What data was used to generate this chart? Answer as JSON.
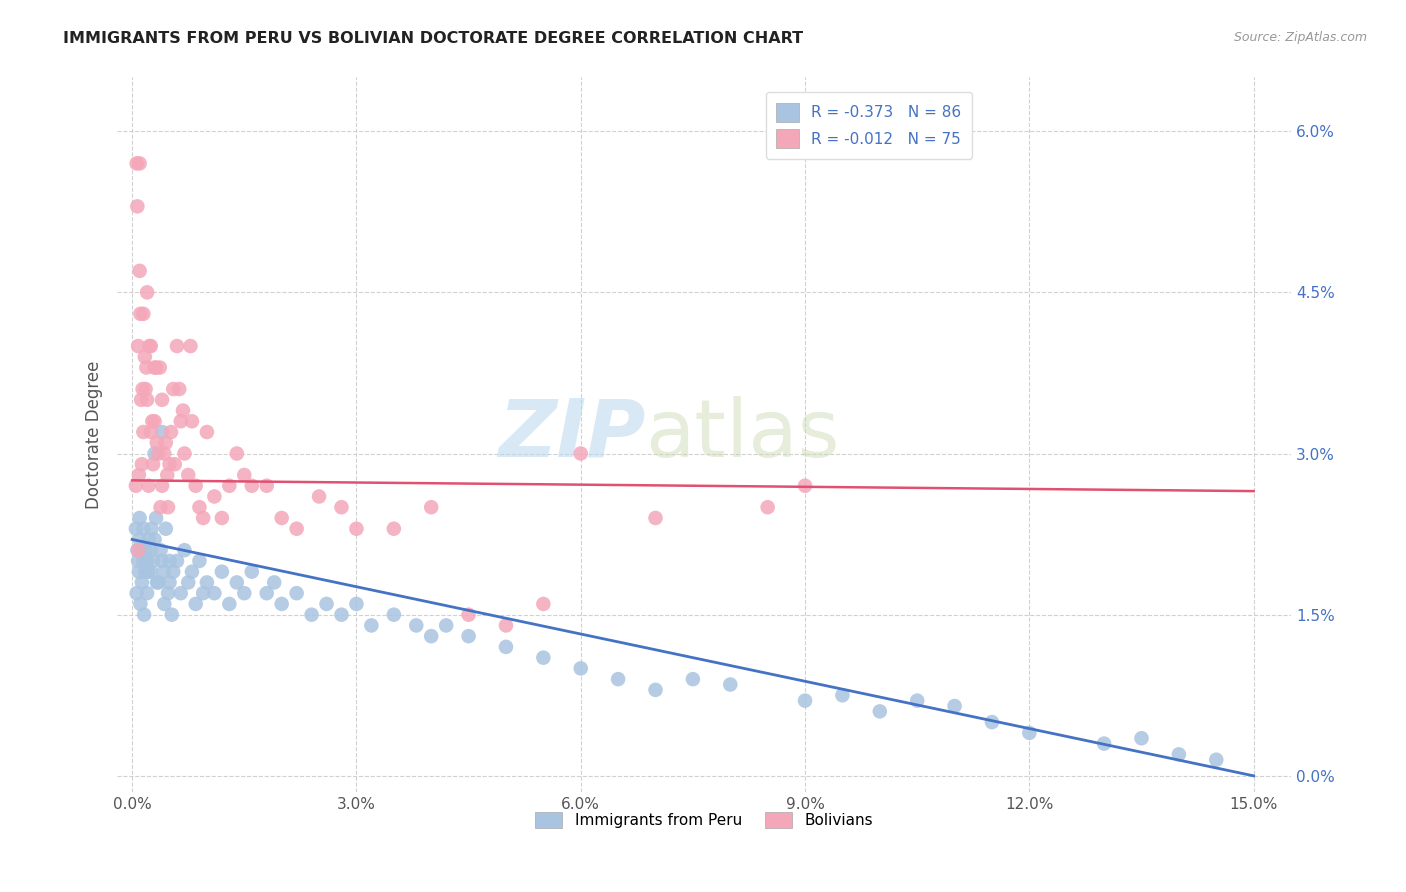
{
  "title": "IMMIGRANTS FROM PERU VS BOLIVIAN DOCTORATE DEGREE CORRELATION CHART",
  "source": "Source: ZipAtlas.com",
  "xlabel_ticks": [
    "0.0%",
    "3.0%",
    "6.0%",
    "9.0%",
    "12.0%",
    "15.0%"
  ],
  "xlabel_values": [
    0.0,
    3.0,
    6.0,
    9.0,
    12.0,
    15.0
  ],
  "ylabel_ticks": [
    "0.0%",
    "1.5%",
    "3.0%",
    "4.5%",
    "6.0%"
  ],
  "ylabel_values": [
    0.0,
    1.5,
    3.0,
    4.5,
    6.0
  ],
  "xlim": [
    -0.2,
    15.5
  ],
  "ylim": [
    -0.15,
    6.5
  ],
  "blue_R": -0.373,
  "blue_N": 86,
  "pink_R": -0.012,
  "pink_N": 75,
  "blue_color": "#a8c4e0",
  "pink_color": "#f4a7b9",
  "blue_line_color": "#4472c4",
  "pink_line_color": "#e05070",
  "legend_label_blue": "Immigrants from Peru",
  "legend_label_pink": "Bolivians",
  "ylabel": "Doctorate Degree",
  "watermark_zip": "ZIP",
  "watermark_atlas": "atlas",
  "background_color": "#ffffff",
  "grid_color": "#cccccc",
  "title_color": "#222222",
  "right_axis_color": "#4472c4",
  "blue_line_x0": 0.0,
  "blue_line_y0": 2.2,
  "blue_line_x1": 15.0,
  "blue_line_y1": 0.0,
  "pink_line_x0": 0.0,
  "pink_line_y0": 2.75,
  "pink_line_x1": 15.0,
  "pink_line_y1": 2.65,
  "blue_scatter_x": [
    0.05,
    0.07,
    0.08,
    0.09,
    0.1,
    0.1,
    0.12,
    0.13,
    0.15,
    0.15,
    0.17,
    0.18,
    0.2,
    0.2,
    0.22,
    0.25,
    0.25,
    0.28,
    0.3,
    0.3,
    0.32,
    0.35,
    0.38,
    0.4,
    0.4,
    0.42,
    0.45,
    0.48,
    0.5,
    0.5,
    0.55,
    0.6,
    0.65,
    0.7,
    0.75,
    0.8,
    0.85,
    0.9,
    0.95,
    1.0,
    1.1,
    1.2,
    1.3,
    1.4,
    1.5,
    1.6,
    1.8,
    1.9,
    2.0,
    2.2,
    2.4,
    2.6,
    2.8,
    3.0,
    3.2,
    3.5,
    3.8,
    4.0,
    4.2,
    4.5,
    5.0,
    5.5,
    6.0,
    6.5,
    7.0,
    7.5,
    8.0,
    9.0,
    9.5,
    10.0,
    10.5,
    11.0,
    11.5,
    12.0,
    13.0,
    13.5,
    14.0,
    14.5,
    0.06,
    0.11,
    0.16,
    0.21,
    0.26,
    0.33,
    0.43,
    0.53
  ],
  "blue_scatter_y": [
    2.3,
    2.1,
    2.0,
    1.9,
    2.2,
    2.4,
    2.1,
    1.8,
    2.0,
    2.3,
    1.9,
    2.1,
    2.0,
    1.7,
    2.2,
    1.9,
    2.1,
    2.0,
    3.0,
    2.2,
    2.4,
    1.8,
    2.1,
    2.0,
    3.2,
    1.9,
    2.3,
    1.7,
    2.0,
    1.8,
    1.9,
    2.0,
    1.7,
    2.1,
    1.8,
    1.9,
    1.6,
    2.0,
    1.7,
    1.8,
    1.7,
    1.9,
    1.6,
    1.8,
    1.7,
    1.9,
    1.7,
    1.8,
    1.6,
    1.7,
    1.5,
    1.6,
    1.5,
    1.6,
    1.4,
    1.5,
    1.4,
    1.3,
    1.4,
    1.3,
    1.2,
    1.1,
    1.0,
    0.9,
    0.8,
    0.9,
    0.85,
    0.7,
    0.75,
    0.6,
    0.7,
    0.65,
    0.5,
    0.4,
    0.3,
    0.35,
    0.2,
    0.15,
    1.7,
    1.6,
    1.5,
    1.9,
    2.3,
    1.8,
    1.6,
    1.5
  ],
  "pink_scatter_x": [
    0.05,
    0.06,
    0.07,
    0.08,
    0.09,
    0.1,
    0.1,
    0.12,
    0.13,
    0.15,
    0.15,
    0.17,
    0.18,
    0.2,
    0.2,
    0.22,
    0.25,
    0.25,
    0.28,
    0.3,
    0.3,
    0.32,
    0.35,
    0.38,
    0.4,
    0.4,
    0.45,
    0.48,
    0.5,
    0.55,
    0.6,
    0.65,
    0.7,
    0.75,
    0.8,
    0.85,
    0.9,
    0.95,
    1.0,
    1.1,
    1.2,
    1.3,
    1.4,
    1.5,
    1.6,
    1.8,
    2.0,
    2.2,
    2.5,
    2.8,
    3.0,
    3.5,
    4.0,
    4.5,
    5.0,
    5.5,
    6.0,
    7.0,
    8.5,
    9.0,
    0.08,
    0.11,
    0.14,
    0.19,
    0.23,
    0.27,
    0.33,
    0.37,
    0.43,
    0.47,
    0.52,
    0.57,
    0.63,
    0.68,
    0.78
  ],
  "pink_scatter_y": [
    2.7,
    5.7,
    5.3,
    4.0,
    2.8,
    5.7,
    4.7,
    3.5,
    2.9,
    4.3,
    3.2,
    3.9,
    3.6,
    3.5,
    4.5,
    2.7,
    4.0,
    3.2,
    2.9,
    3.8,
    3.3,
    3.8,
    3.0,
    2.5,
    2.7,
    3.5,
    3.1,
    2.5,
    2.9,
    3.6,
    4.0,
    3.3,
    3.0,
    2.8,
    3.3,
    2.7,
    2.5,
    2.4,
    3.2,
    2.6,
    2.4,
    2.7,
    3.0,
    2.8,
    2.7,
    2.7,
    2.4,
    2.3,
    2.6,
    2.5,
    2.3,
    2.3,
    2.5,
    1.5,
    1.4,
    1.6,
    3.0,
    2.4,
    2.5,
    2.7,
    2.1,
    4.3,
    3.6,
    3.8,
    4.0,
    3.3,
    3.1,
    3.8,
    3.0,
    2.8,
    3.2,
    2.9,
    3.6,
    3.4,
    4.0
  ]
}
